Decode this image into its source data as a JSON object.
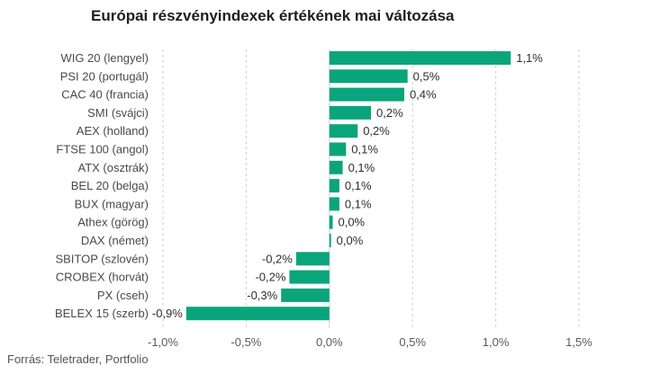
{
  "title": "Európai részvényindexek értékének mai változása",
  "source": "Forrás: Teletrader, Portfolio",
  "chart_data": {
    "type": "bar",
    "orientation": "horizontal",
    "categories": [
      "WIG 20 (lengyel)",
      "PSI 20 (portugál)",
      "CAC 40 (francia)",
      "SMI (svájci)",
      "AEX (holland)",
      "FTSE 100 (angol)",
      "ATX (osztrák)",
      "BEL 20 (belga)",
      "BUX (magyar)",
      "Athex (görög)",
      "DAX (német)",
      "SBITOP (szlovén)",
      "CROBEX (horvát)",
      "PX (cseh)",
      "BELEX 15 (szerb)"
    ],
    "values": [
      1.09,
      0.47,
      0.45,
      0.25,
      0.17,
      0.1,
      0.08,
      0.06,
      0.06,
      0.02,
      0.01,
      -0.2,
      -0.24,
      -0.29,
      -0.86
    ],
    "data_labels": [
      "1,1%",
      "0,5%",
      "0,4%",
      "0,2%",
      "0,2%",
      "0,1%",
      "0,1%",
      "0,1%",
      "0,1%",
      "0,0%",
      "0,0%",
      "-0,2%",
      "-0,2%",
      "-0,3%",
      "-0,9%"
    ],
    "xlim": [
      -1.0,
      1.5
    ],
    "xticks": [
      -1.0,
      -0.5,
      0.0,
      0.5,
      1.0,
      1.5
    ],
    "xtick_labels": [
      "-1,0%",
      "-0,5%",
      "0,0%",
      "0,5%",
      "1,0%",
      "1,5%"
    ],
    "grid": "vertical-dashed",
    "legend": "none",
    "bar_color": "#0aa57a"
  }
}
